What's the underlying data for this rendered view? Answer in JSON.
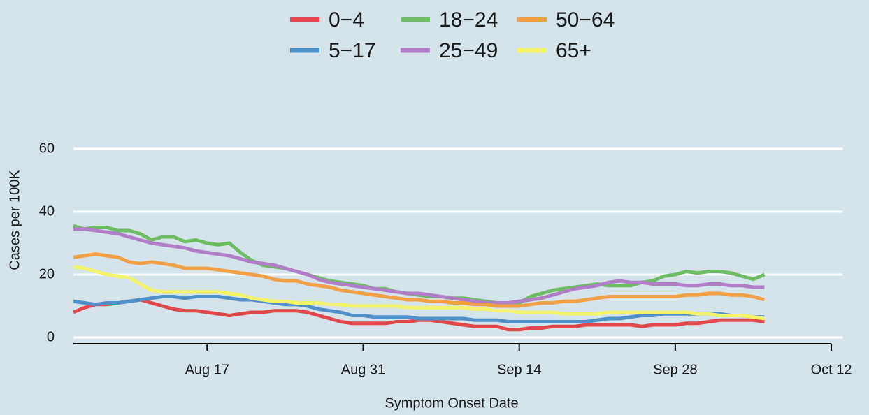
{
  "chart_data": {
    "type": "line",
    "x_label": "Symptom Onset Date",
    "y_label": "Cases per 100K",
    "x": [
      "Aug 5",
      "Aug 6",
      "Aug 7",
      "Aug 8",
      "Aug 9",
      "Aug 10",
      "Aug 11",
      "Aug 12",
      "Aug 13",
      "Aug 14",
      "Aug 15",
      "Aug 16",
      "Aug 17",
      "Aug 18",
      "Aug 19",
      "Aug 20",
      "Aug 21",
      "Aug 22",
      "Aug 23",
      "Aug 24",
      "Aug 25",
      "Aug 26",
      "Aug 27",
      "Aug 28",
      "Aug 29",
      "Aug 30",
      "Aug 31",
      "Sep 1",
      "Sep 2",
      "Sep 3",
      "Sep 4",
      "Sep 5",
      "Sep 6",
      "Sep 7",
      "Sep 8",
      "Sep 9",
      "Sep 10",
      "Sep 11",
      "Sep 12",
      "Sep 13",
      "Sep 14",
      "Sep 15",
      "Sep 16",
      "Sep 17",
      "Sep 18",
      "Sep 19",
      "Sep 20",
      "Sep 21",
      "Sep 22",
      "Sep 23",
      "Sep 24",
      "Sep 25",
      "Sep 26",
      "Sep 27",
      "Sep 28",
      "Sep 29",
      "Sep 30",
      "Oct 1",
      "Oct 2",
      "Oct 3",
      "Oct 4",
      "Oct 5",
      "Oct 6"
    ],
    "series": [
      {
        "name": "0−4",
        "color": "#e2474d",
        "values": [
          8,
          9.5,
          10.5,
          10.5,
          11,
          11.5,
          12,
          11,
          10,
          9,
          8.5,
          8.5,
          8,
          7.5,
          7,
          7.5,
          8,
          8,
          8.5,
          8.5,
          8.5,
          8,
          7,
          6,
          5,
          4.5,
          4.5,
          4.5,
          4.5,
          5,
          5,
          5.5,
          5.5,
          5,
          4.5,
          4,
          3.5,
          3.5,
          3.5,
          2.5,
          2.5,
          3,
          3,
          3.5,
          3.5,
          3.5,
          4,
          4,
          4,
          4,
          4,
          3.5,
          4,
          4,
          4,
          4.5,
          4.5,
          5,
          5.5,
          5.5,
          5.5,
          5.5,
          5
        ]
      },
      {
        "name": "5−17",
        "color": "#4f90c8",
        "values": [
          11.5,
          11,
          10.5,
          11,
          11,
          11.5,
          12,
          12.5,
          13,
          13,
          12.5,
          13,
          13,
          13,
          12.5,
          12,
          12,
          11.5,
          11,
          10.5,
          10.5,
          10,
          9,
          8.5,
          8,
          7,
          7,
          6.5,
          6.5,
          6.5,
          6.5,
          6,
          6,
          6,
          6,
          6,
          5.5,
          5.5,
          5.5,
          5,
          5,
          5,
          5,
          5,
          5,
          5,
          5,
          5.5,
          6,
          6,
          6.5,
          7,
          7,
          7.5,
          7.5,
          7.5,
          7.5,
          7.5,
          7.5,
          7,
          7,
          6.5,
          6.5
        ]
      },
      {
        "name": "18−24",
        "color": "#6cbd63",
        "values": [
          35.5,
          34.5,
          35,
          35,
          34,
          34,
          33,
          31,
          32,
          32,
          30.5,
          31,
          30,
          29.5,
          30,
          27,
          24.5,
          23,
          22.5,
          22,
          21,
          20,
          19,
          18,
          17.5,
          17,
          16.5,
          15.5,
          15.5,
          14.5,
          14,
          13.5,
          13,
          13,
          12.5,
          12.5,
          12,
          11.5,
          11,
          11,
          11,
          13,
          14,
          15,
          15.5,
          16,
          16.5,
          17,
          16.5,
          16.5,
          16.5,
          17.5,
          18,
          19.5,
          20,
          21,
          20.5,
          21,
          21,
          20.5,
          19.5,
          18.5,
          20
        ]
      },
      {
        "name": "25−49",
        "color": "#b07ec5",
        "values": [
          34.5,
          34.5,
          34,
          33.5,
          33,
          32,
          31,
          30,
          29.5,
          29,
          28.5,
          27.5,
          27,
          26.5,
          26,
          25,
          24,
          23.5,
          23,
          22,
          21,
          20,
          18.5,
          17.5,
          17,
          16.5,
          16,
          15.5,
          15,
          14.5,
          14,
          14,
          13.5,
          13,
          12.5,
          12,
          11.5,
          11,
          11,
          11,
          11.5,
          12,
          12.5,
          13.5,
          14.5,
          15.5,
          16,
          16.5,
          17.5,
          18,
          17.5,
          17.5,
          17,
          17,
          17,
          16.5,
          16.5,
          17,
          17,
          16.5,
          16.5,
          16,
          16
        ]
      },
      {
        "name": "50−64",
        "color": "#f2a045",
        "values": [
          25.5,
          26,
          26.5,
          26,
          25.5,
          24,
          23.5,
          24,
          23.5,
          23,
          22,
          22,
          22,
          21.5,
          21,
          20.5,
          20,
          19.5,
          18.5,
          18,
          18,
          17,
          16.5,
          16,
          15,
          14.5,
          14,
          13.5,
          13,
          12.5,
          12,
          12,
          11.5,
          11.5,
          11,
          11,
          10.5,
          10.5,
          10,
          10,
          10,
          10.5,
          11,
          11,
          11.5,
          11.5,
          12,
          12.5,
          13,
          13,
          13,
          13,
          13,
          13,
          13,
          13.5,
          13.5,
          14,
          14,
          13.5,
          13.5,
          13,
          12
        ]
      },
      {
        "name": "65+",
        "color": "#f4f46c",
        "values": [
          22.5,
          22,
          21,
          20,
          19.5,
          19,
          17,
          15,
          14.5,
          14.5,
          14.5,
          14.5,
          14.5,
          14.5,
          14,
          13.5,
          12.5,
          12,
          11.5,
          11.5,
          11,
          11,
          11,
          10.5,
          10.5,
          10,
          10,
          10,
          10,
          10,
          9.5,
          9.5,
          9.5,
          9.5,
          9.5,
          9.5,
          9,
          9,
          8.5,
          8.5,
          8,
          8,
          8,
          8,
          7.5,
          7.5,
          7.5,
          7.5,
          8,
          8,
          8,
          8,
          8,
          8,
          8,
          8,
          7.5,
          7.5,
          7,
          7,
          7,
          6.5,
          6
        ]
      }
    ],
    "xlim": [
      "Aug 5",
      "Oct 13"
    ],
    "xticks": [
      "Aug 17",
      "Aug 31",
      "Sep 14",
      "Sep 28",
      "Oct 12"
    ],
    "ylim": [
      -2,
      63
    ],
    "yticks": [
      0,
      20,
      40,
      60
    ],
    "grid": true,
    "legend": "top"
  }
}
